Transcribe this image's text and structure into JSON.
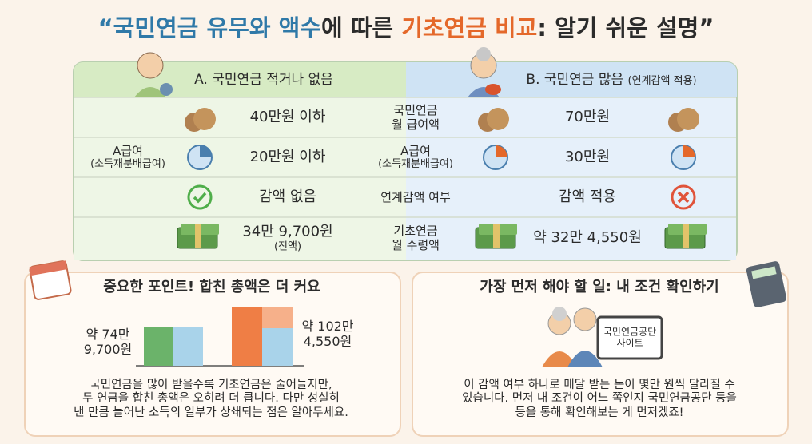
{
  "title": {
    "parts": [
      "“국민연금 유무와 액수",
      "에 따른 ",
      "기초연금 비교",
      ": 알기 쉬운 설명”"
    ]
  },
  "table": {
    "header_a": "A. 국민연금 적거나 없음",
    "header_b": "B. 국민연금 많음",
    "header_b_note": "(연계감액 적용)",
    "rows": [
      {
        "label": [
          "국민연금",
          "월 급여액"
        ],
        "a": [
          "40만원 이하"
        ],
        "b": [
          "70만원"
        ]
      },
      {
        "side_label": [
          "A급여",
          "(소득재분배급여)"
        ],
        "label": [
          "A급여",
          "(소득재분배급여)"
        ],
        "a": [
          "20만원 이하"
        ],
        "b": [
          "30만원"
        ]
      },
      {
        "label": [
          "연계감액 여부"
        ],
        "a": [
          "감액 없음"
        ],
        "b": [
          "감액 적용"
        ]
      },
      {
        "label": [
          "기초연금",
          "월 수령액"
        ],
        "a": [
          "34만 9,700원",
          "(전액)"
        ],
        "b": [
          "약 32만 4,550원"
        ]
      }
    ]
  },
  "point_panel": {
    "title": "중요한 포인트! 합친 총액은 더 커요",
    "bar_a_label": [
      "약 74만",
      "9,700원"
    ],
    "bar_b_label": [
      "약 102만",
      "4,550원"
    ],
    "body": [
      "국민연금을 많이 받을수록 기초연금은 줄어들지만,",
      "두 연금을 합친 총액은 오히려 더 큽니다. 다만 성실히",
      "낸 만큼 늘어난 소득의 일부가 상쇄되는 점은 알아두세요."
    ]
  },
  "action_panel": {
    "title": "가장 먼저 해야 할 일: 내 조건 확인하기",
    "screen_label": [
      "국민연금공단",
      "사이트"
    ],
    "body": [
      "이 감액 여부 하나로 매달 받는 돈이 몇만 원씩 달라질 수",
      "있습니다. 먼저 내 조건이 어느 쪽인지 국민연금공단 등을",
      "등을 통해 확인해보는 게 먼저겠죠!"
    ]
  }
}
